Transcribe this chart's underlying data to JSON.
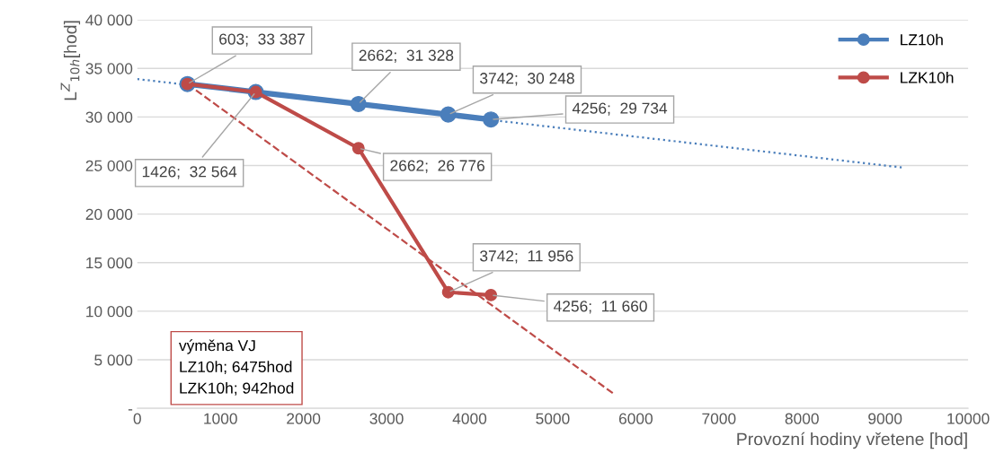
{
  "chart_data": {
    "type": "line",
    "xlabel": "Provozní hodiny vřetene [hod]",
    "ylabel": "L$^{Z}$$_{10h}$[hod]",
    "xlim": [
      0,
      10000
    ],
    "xticks": [
      0,
      1000,
      2000,
      3000,
      4000,
      5000,
      6000,
      7000,
      8000,
      9000,
      10000
    ],
    "ylim": [
      0,
      40000
    ],
    "yticks": [
      {
        "value": 0,
        "label": "-"
      },
      {
        "value": 5000,
        "label": "5 000"
      },
      {
        "value": 10000,
        "label": "10 000"
      },
      {
        "value": 15000,
        "label": "15 000"
      },
      {
        "value": 20000,
        "label": "20 000"
      },
      {
        "value": 25000,
        "label": "25 000"
      },
      {
        "value": 30000,
        "label": "30 000"
      },
      {
        "value": 35000,
        "label": "35 000"
      },
      {
        "value": 40000,
        "label": "40 000"
      }
    ],
    "grid": "y",
    "legend": "top right",
    "marker": "circle",
    "series": [
      {
        "name": "LZ10h",
        "color": "#4a7ebb",
        "x": [
          603,
          1426,
          2662,
          3742,
          4256
        ],
        "values": [
          33387,
          32564,
          31328,
          30248,
          29734
        ],
        "value_labels": [
          null,
          null,
          "2662;  31 328",
          "3742;  30 248",
          "4256;  29 734"
        ]
      },
      {
        "name": "LZK10h",
        "color": "#be4b48",
        "x": [
          603,
          1426,
          2662,
          3742,
          4256
        ],
        "values": [
          33387,
          32564,
          26776,
          11956,
          11660
        ],
        "value_labels": [
          "603;  33 387",
          "1426;  32 564",
          "2662;  26 776",
          "3742;  11 956",
          "4256;  11 660"
        ]
      },
      {
        "type": "line",
        "color": "#4a7ebb",
        "line_style": "dotted",
        "marker": "none",
        "x": [
          0,
          9200
        ],
        "values": [
          33900,
          24800
        ]
      },
      {
        "type": "line",
        "color": "#be4b48",
        "line_style": "dashed",
        "marker": "none",
        "x": [
          603,
          5750
        ],
        "values": [
          33387,
          1400
        ]
      }
    ],
    "annotations": [
      "výměna VJ\nLZ10h; 6475hod\nLZK10h; 942hod"
    ]
  }
}
